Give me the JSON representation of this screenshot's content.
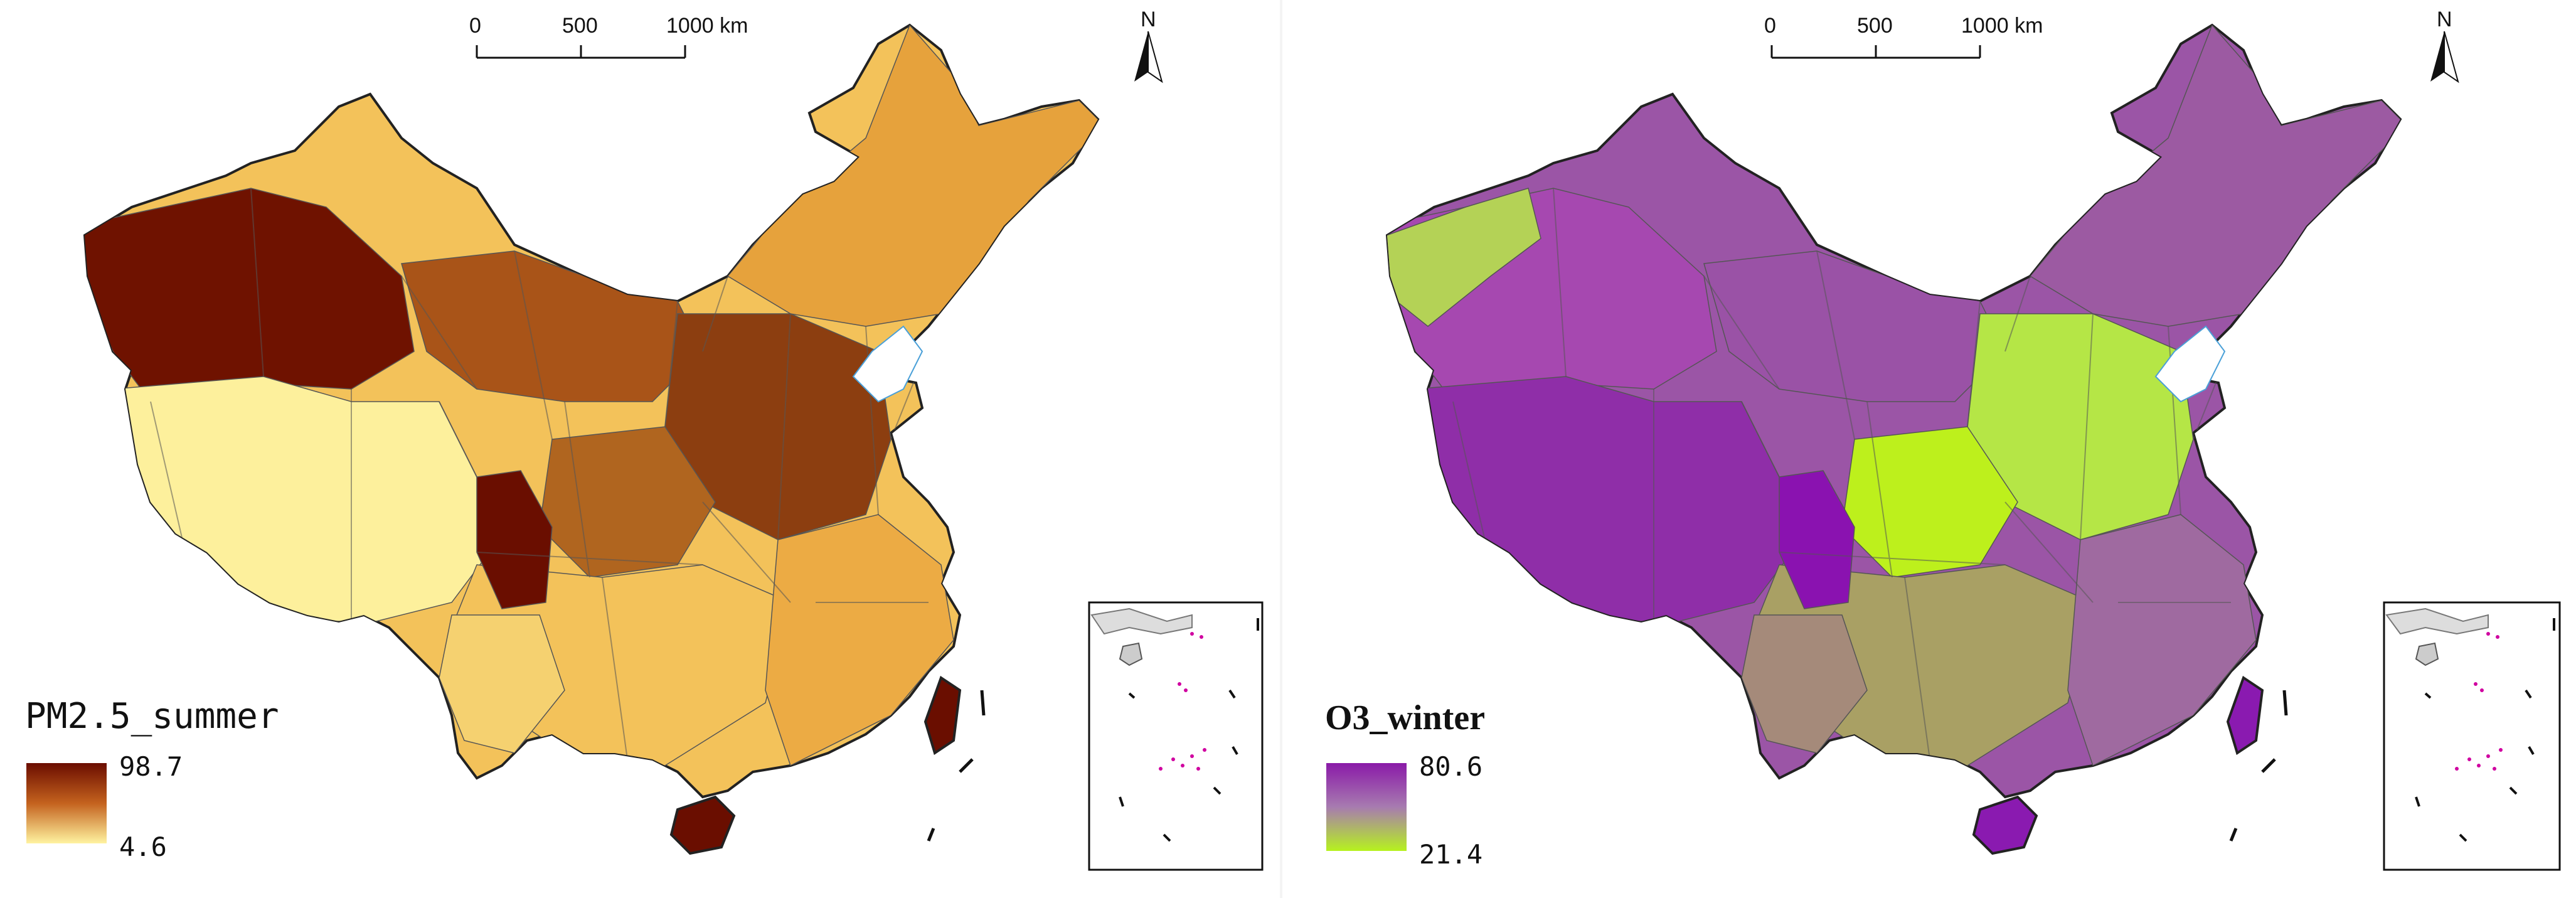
{
  "maps": [
    {
      "id": "pm25_summer",
      "legend": {
        "title": "PM2.5_summer",
        "max": "98.7",
        "min": "4.6",
        "color_high": "#6b0d00",
        "color_mid": "#c4621e",
        "color_low": "#fff3a0",
        "title_font": "mono"
      },
      "scale_bar": {
        "labels": [
          "0",
          "500",
          "1000 km"
        ]
      },
      "north_label": "N",
      "fills": {
        "nw": "#6f1200",
        "west_plateau": "#fdf09c",
        "north_inner": "#a95418",
        "northeast": "#e6a23c",
        "east_plain": "#8c3e10",
        "sichuan": "#b0651f",
        "south": "#f3c25a",
        "southeast": "#ecab44",
        "tibet_se": "#6a0e00",
        "hainan": "#6a0e00",
        "taiwan": "#6a0e00",
        "yunnan": "#f5d170"
      }
    },
    {
      "id": "o3_winter",
      "legend": {
        "title": "O3_winter",
        "max": "80.6",
        "min": "21.4",
        "color_high": "#8a1aa8",
        "color_mid": "#a77bb0",
        "color_low": "#b6f21e",
        "title_font": "serif-bold"
      },
      "scale_bar": {
        "labels": [
          "0",
          "500",
          "1000 km"
        ]
      },
      "north_label": "N",
      "fills": {
        "nw": "#a648b0",
        "west_plateau": "#8f2ea8",
        "north_inner": "#9a52a6",
        "northeast": "#9c5aa2",
        "east_plain": "#b5e646",
        "sichuan": "#bdf01c",
        "south": "#a9a064",
        "southeast": "#9f6aa0",
        "tibet_se": "#8a12b0",
        "hainan": "#8a1ab0",
        "taiwan": "#8a1ab0",
        "yunnan": "#a58a7a",
        "xinjiang_green": "#b4d256"
      }
    }
  ]
}
